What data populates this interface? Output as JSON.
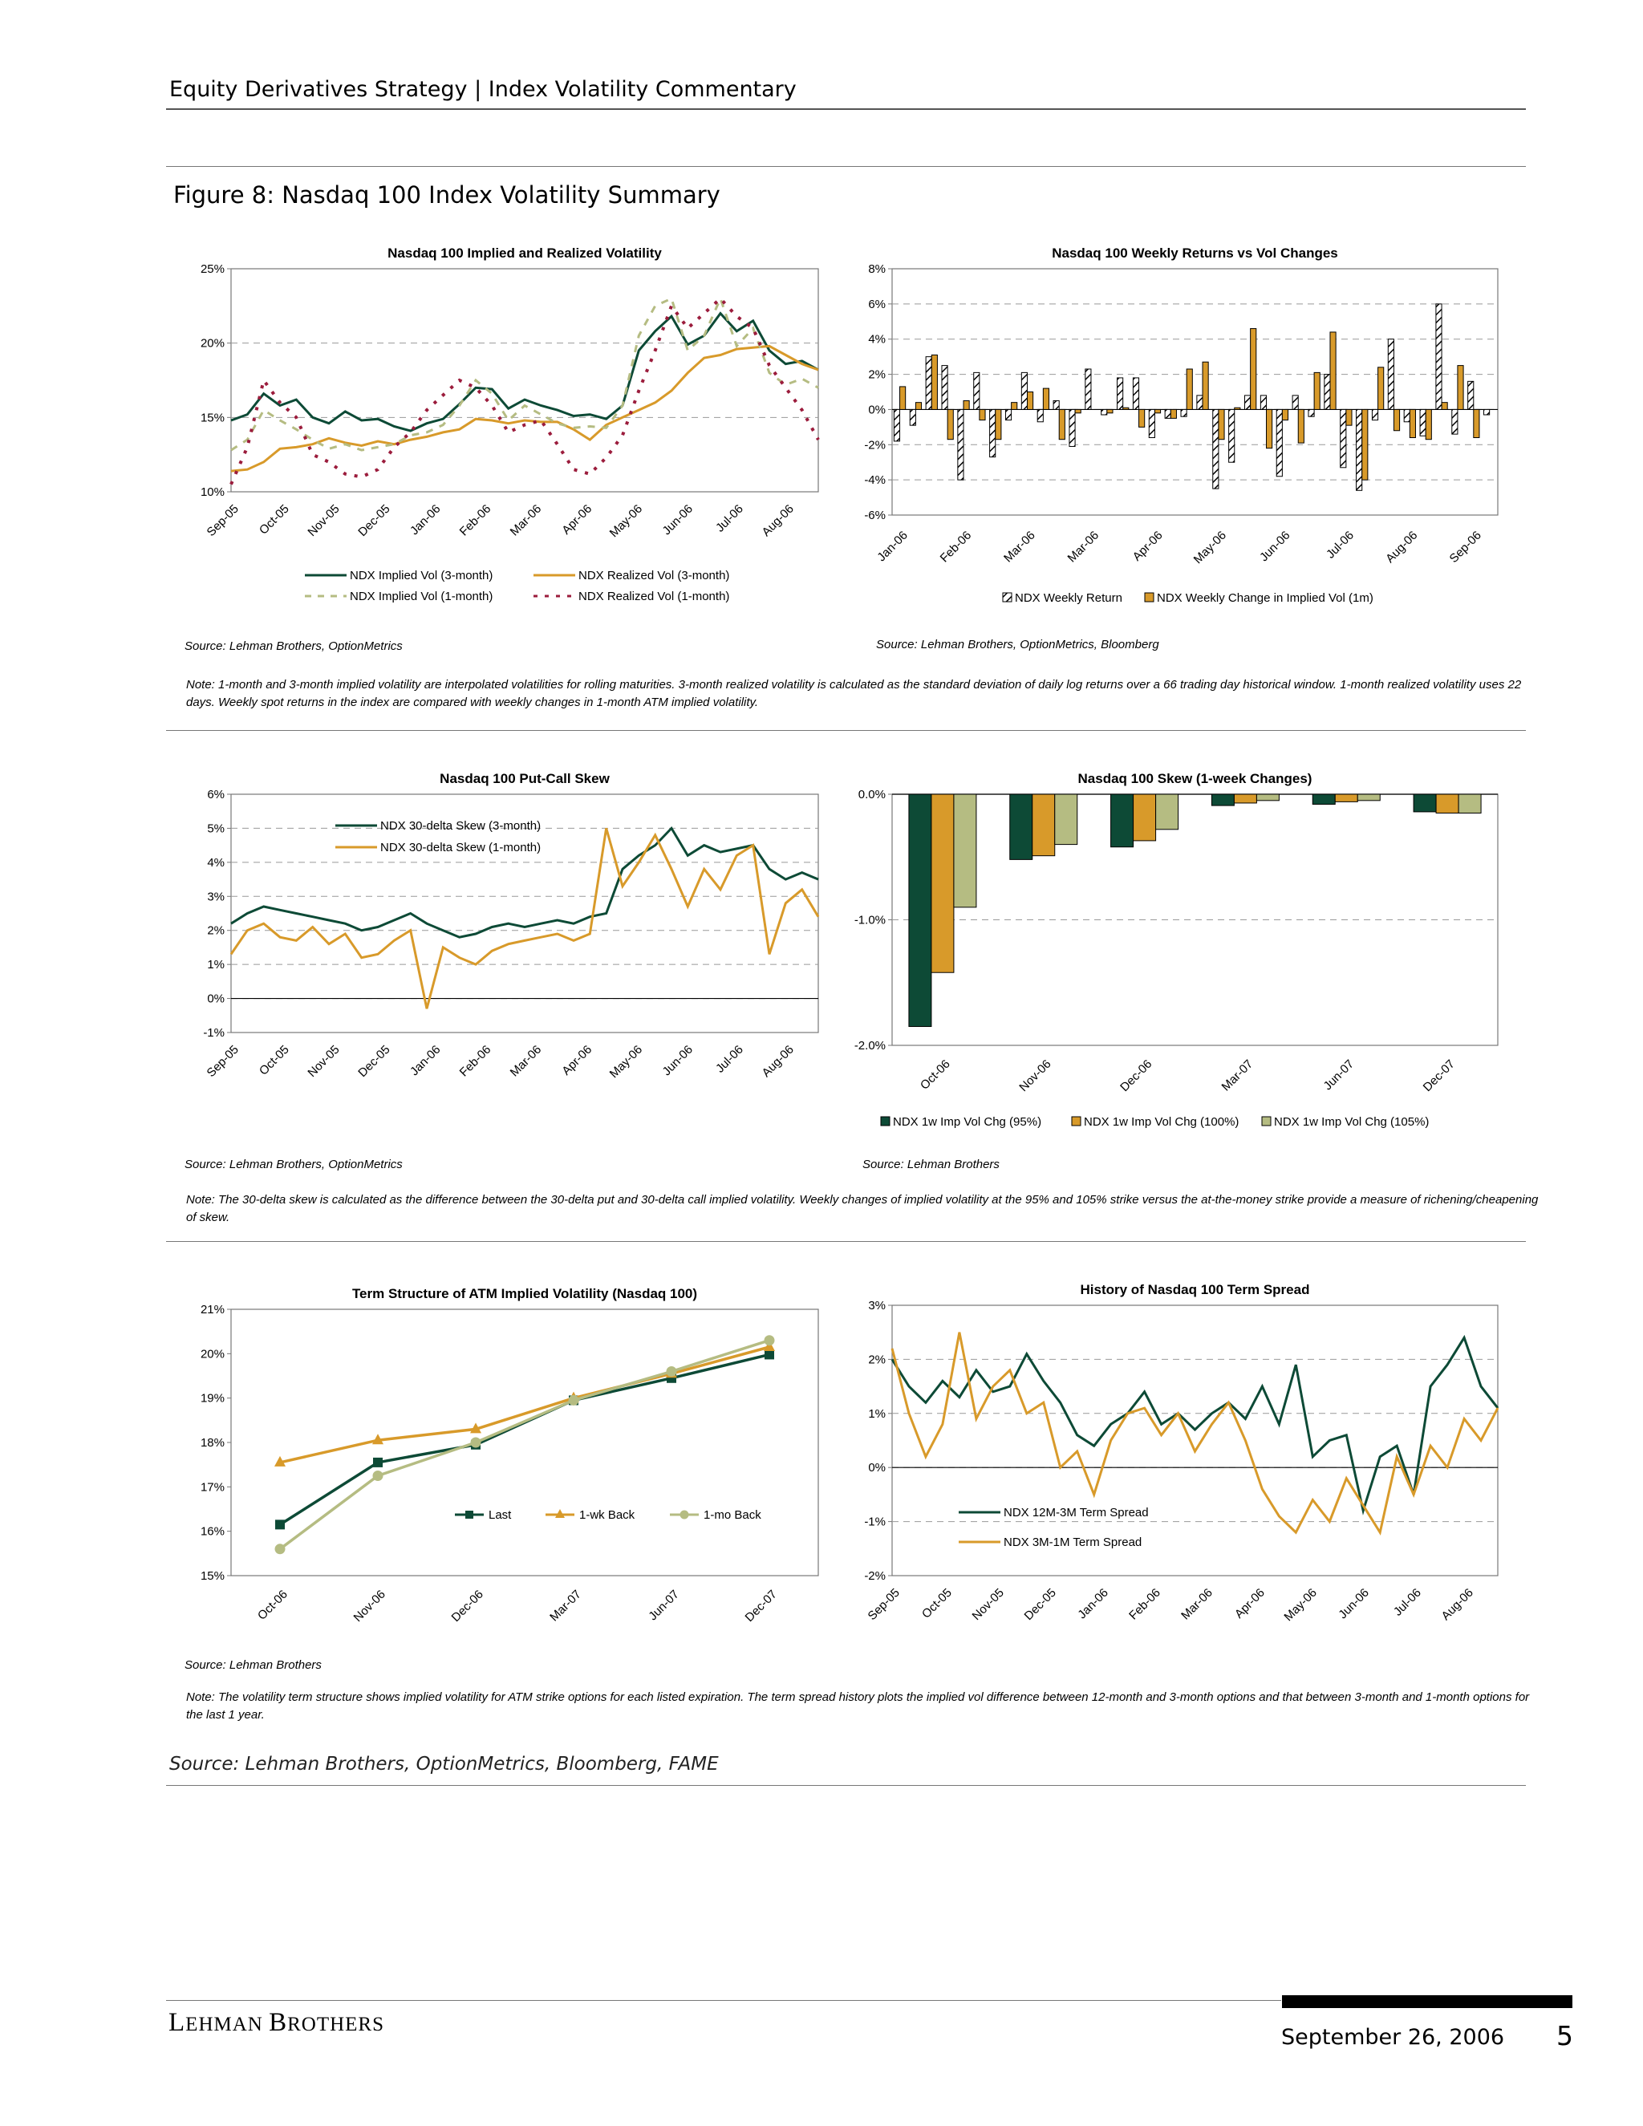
{
  "header": {
    "text": "Equity Derivatives Strategy | Index Volatility Commentary"
  },
  "figure": {
    "title": "Figure 8: Nasdaq 100 Index Volatility Summary"
  },
  "sources": {
    "s1": "Source: Lehman Brothers, OptionMetrics",
    "s2": "Source: Lehman Brothers, OptionMetrics, Bloomberg",
    "s3": "Source: Lehman Brothers, OptionMetrics",
    "s4": "Source: Lehman Brothers",
    "s5": "Source: Lehman Brothers",
    "overall": "Source: Lehman Brothers, OptionMetrics, Bloomberg, FAME"
  },
  "notes": {
    "n1": "Note: 1-month and 3-month implied volatility are interpolated volatilities for rolling maturities. 3-month realized volatility is calculated as the standard deviation of daily log returns over a 66 trading day historical window. 1-month realized volatility uses 22 days. Weekly spot returns in the index are compared with weekly changes in 1-month ATM implied volatility.",
    "n2": "Note: The 30-delta skew is calculated as the difference between the 30-delta put and 30-delta call implied volatility. Weekly changes of implied volatility at the 95% and 105% strike versus the at-the-money strike provide a measure of richening/cheapening of skew.",
    "n3": "Note: The volatility term structure shows implied volatility for ATM strike options for each listed expiration. The term spread history plots the implied vol difference between 12-month and 3-month options and that between 3-month and 1-month options for the last 1 year."
  },
  "footer": {
    "brand_first": "L",
    "brand_rest": "EHMAN ",
    "brand_first2": "B",
    "brand_rest2": "ROTHERS",
    "date": "September 26, 2006",
    "page": "5"
  },
  "colors": {
    "green": "#0d4a36",
    "orange": "#d89a2a",
    "lightgreen": "#b5bc82",
    "maroon": "#9b1c3c"
  },
  "chart_data": [
    {
      "id": "c1",
      "type": "line",
      "title": "Nasdaq 100 Implied and Realized Volatility",
      "x_ticks": [
        "Sep-05",
        "Oct-05",
        "Nov-05",
        "Dec-05",
        "Jan-06",
        "Feb-06",
        "Mar-06",
        "Apr-06",
        "May-06",
        "Jun-06",
        "Jul-06",
        "Aug-06"
      ],
      "y_ticks": [
        "25%",
        "20%",
        "15%",
        "10%"
      ],
      "ylim": [
        10,
        25
      ],
      "legend_placement": "below",
      "grid": true,
      "series": [
        {
          "name": "NDX Implied Vol (3-month)",
          "style": "solid",
          "color": "#0d4a36",
          "values": [
            14.8,
            15.2,
            16.6,
            15.8,
            16.2,
            15.0,
            14.6,
            15.4,
            14.8,
            14.9,
            14.4,
            14.1,
            14.6,
            14.9,
            15.9,
            17.0,
            16.9,
            15.6,
            16.2,
            15.8,
            15.5,
            15.1,
            15.2,
            14.9,
            15.8,
            19.5,
            20.8,
            21.8,
            19.9,
            20.5,
            22.0,
            20.8,
            21.5,
            19.5,
            18.6,
            18.8,
            18.2
          ]
        },
        {
          "name": "NDX Realized Vol (3-month)",
          "style": "solid",
          "color": "#d89a2a",
          "values": [
            11.4,
            11.5,
            12.0,
            12.9,
            13.0,
            13.2,
            13.6,
            13.3,
            13.1,
            13.4,
            13.2,
            13.5,
            13.7,
            14.0,
            14.2,
            14.9,
            14.8,
            14.6,
            14.8,
            14.7,
            14.7,
            14.2,
            13.5,
            14.5,
            15.0,
            15.5,
            16.0,
            16.8,
            18.0,
            19.0,
            19.2,
            19.6,
            19.7,
            19.8,
            19.2,
            18.6,
            18.2
          ]
        },
        {
          "name": "NDX Implied Vol (1-month)",
          "style": "dash",
          "color": "#b5bc82",
          "values": [
            12.8,
            13.5,
            15.5,
            14.8,
            14.2,
            13.5,
            12.9,
            13.2,
            12.8,
            13.0,
            13.2,
            13.8,
            14.0,
            14.5,
            15.8,
            17.5,
            16.6,
            14.8,
            15.8,
            15.2,
            14.6,
            14.3,
            14.4,
            14.3,
            15.8,
            20.5,
            22.5,
            23.0,
            19.5,
            20.5,
            23.0,
            19.8,
            21.0,
            18.0,
            17.2,
            17.6,
            17.0
          ]
        },
        {
          "name": "NDX Realized Vol (1-month)",
          "style": "dot",
          "color": "#9b1c3c",
          "values": [
            10.5,
            13.0,
            17.5,
            16.0,
            15.0,
            12.5,
            12.0,
            11.2,
            11.0,
            11.5,
            13.0,
            14.0,
            15.5,
            16.5,
            17.5,
            17.0,
            15.8,
            14.0,
            14.5,
            14.8,
            13.2,
            11.5,
            11.2,
            12.3,
            13.8,
            16.8,
            19.5,
            22.5,
            21.0,
            22.0,
            23.0,
            21.8,
            21.0,
            18.5,
            17.0,
            15.5,
            13.5
          ]
        }
      ]
    },
    {
      "id": "c2",
      "type": "bar",
      "title": "Nasdaq 100 Weekly Returns vs Vol Changes",
      "x_ticks": [
        "Jan-06",
        "Feb-06",
        "Mar-06",
        "Mar-06",
        "Apr-06",
        "May-06",
        "Jun-06",
        "Jul-06",
        "Aug-06",
        "Sep-06"
      ],
      "y_ticks": [
        "8%",
        "6%",
        "4%",
        "2%",
        "0%",
        "-2%",
        "-4%",
        "-6%"
      ],
      "ylim": [
        -6,
        8
      ],
      "legend_placement": "below",
      "grid": true,
      "series": [
        {
          "name": "NDX Weekly Return",
          "pattern": "hatched",
          "values": [
            -1.8,
            -0.9,
            3.0,
            2.5,
            -4.0,
            2.1,
            -2.7,
            -0.6,
            2.1,
            -0.7,
            0.5,
            -2.1,
            2.3,
            -0.3,
            1.8,
            1.8,
            -1.6,
            -0.5,
            -0.4,
            0.8,
            -4.5,
            -3.0,
            0.8,
            0.8,
            -3.8,
            0.8,
            -0.4,
            2.0,
            -3.3,
            -4.6,
            -0.6,
            4.0,
            -0.7,
            -1.5,
            6.0,
            -1.4,
            1.6,
            -0.3
          ]
        },
        {
          "name": "NDX Weekly Change in Implied Vol (1m)",
          "pattern": "solid",
          "color": "#d89a2a",
          "values": [
            1.3,
            0.4,
            3.1,
            -1.7,
            0.5,
            -0.6,
            -1.7,
            0.4,
            1.0,
            1.2,
            -1.7,
            -0.2,
            0.0,
            -0.2,
            0.1,
            -1.0,
            -0.2,
            -0.5,
            2.3,
            2.7,
            -1.7,
            0.1,
            4.6,
            -2.2,
            -0.6,
            -1.9,
            2.1,
            4.4,
            -0.9,
            -4.0,
            2.4,
            -1.2,
            -1.6,
            -1.7,
            0.4,
            2.5,
            -1.6,
            0.0
          ]
        }
      ]
    },
    {
      "id": "c3",
      "type": "line",
      "title": "Nasdaq 100 Put-Call Skew",
      "x_ticks": [
        "Sep-05",
        "Oct-05",
        "Nov-05",
        "Dec-05",
        "Jan-06",
        "Feb-06",
        "Mar-06",
        "Apr-06",
        "May-06",
        "Jun-06",
        "Jul-06",
        "Aug-06"
      ],
      "y_ticks": [
        "6%",
        "5%",
        "4%",
        "3%",
        "2%",
        "1%",
        "0%",
        "-1%"
      ],
      "ylim": [
        -1,
        6
      ],
      "legend_placement": "top-left",
      "grid": true,
      "series": [
        {
          "name": "NDX 30-delta Skew (3-month)",
          "color": "#0d4a36",
          "values": [
            2.2,
            2.5,
            2.7,
            2.6,
            2.5,
            2.4,
            2.3,
            2.2,
            2.0,
            2.1,
            2.3,
            2.5,
            2.2,
            2.0,
            1.8,
            1.9,
            2.1,
            2.2,
            2.1,
            2.2,
            2.3,
            2.2,
            2.4,
            2.5,
            3.8,
            4.2,
            4.5,
            5.0,
            4.2,
            4.5,
            4.3,
            4.4,
            4.5,
            3.8,
            3.5,
            3.7,
            3.5
          ]
        },
        {
          "name": "NDX 30-delta Skew (1-month)",
          "color": "#d89a2a",
          "values": [
            1.3,
            2.0,
            2.2,
            1.8,
            1.7,
            2.1,
            1.6,
            1.9,
            1.2,
            1.3,
            1.7,
            2.0,
            -0.3,
            1.5,
            1.2,
            1.0,
            1.4,
            1.6,
            1.7,
            1.8,
            1.9,
            1.7,
            1.9,
            5.0,
            3.3,
            4.0,
            4.8,
            3.8,
            2.7,
            3.8,
            3.2,
            4.2,
            4.5,
            1.3,
            2.8,
            3.2,
            2.4
          ]
        }
      ]
    },
    {
      "id": "c4",
      "type": "bar",
      "title": "Nasdaq 100 Skew (1-week Changes)",
      "categories": [
        "Oct-06",
        "Nov-06",
        "Dec-06",
        "Mar-07",
        "Jun-07",
        "Dec-07"
      ],
      "y_ticks": [
        "0.0%",
        "-1.0%",
        "-2.0%"
      ],
      "ylim": [
        -2.0,
        0.0
      ],
      "legend_placement": "below",
      "grid": true,
      "series": [
        {
          "name": "NDX 1w Imp Vol Chg (95%)",
          "color": "#0d4a36",
          "values": [
            -1.85,
            -0.52,
            -0.42,
            -0.09,
            -0.08,
            -0.14
          ]
        },
        {
          "name": "NDX 1w Imp Vol Chg (100%)",
          "color": "#d89a2a",
          "values": [
            -1.42,
            -0.49,
            -0.37,
            -0.07,
            -0.06,
            -0.15
          ]
        },
        {
          "name": "NDX 1w Imp Vol Chg (105%)",
          "color": "#b5bc82",
          "values": [
            -0.9,
            -0.4,
            -0.28,
            -0.05,
            -0.05,
            -0.15
          ]
        }
      ]
    },
    {
      "id": "c5",
      "type": "line",
      "title": "Term Structure of ATM Implied Volatility (Nasdaq 100)",
      "categories": [
        "Oct-06",
        "Nov-06",
        "Dec-06",
        "Mar-07",
        "Jun-07",
        "Dec-07"
      ],
      "y_ticks": [
        "21%",
        "20%",
        "19%",
        "18%",
        "17%",
        "16%",
        "15%"
      ],
      "ylim": [
        15,
        21
      ],
      "legend_placement": "right",
      "grid": false,
      "series": [
        {
          "name": "Last",
          "color": "#0d4a36",
          "marker": "square",
          "values": [
            16.15,
            17.55,
            17.95,
            18.95,
            19.45,
            19.98
          ]
        },
        {
          "name": "1-wk Back",
          "color": "#d89a2a",
          "marker": "triangle",
          "values": [
            17.55,
            18.05,
            18.3,
            19.0,
            19.55,
            20.15
          ]
        },
        {
          "name": "1-mo Back",
          "color": "#b5bc82",
          "marker": "circle",
          "values": [
            15.6,
            17.25,
            18.0,
            18.95,
            19.6,
            20.3
          ]
        }
      ]
    },
    {
      "id": "c6",
      "type": "line",
      "title": "History of Nasdaq 100 Term Spread",
      "x_ticks": [
        "Sep-05",
        "Oct-05",
        "Nov-05",
        "Dec-05",
        "Jan-06",
        "Feb-06",
        "Mar-06",
        "Apr-06",
        "May-06",
        "Jun-06",
        "Jul-06",
        "Aug-06"
      ],
      "y_ticks": [
        "3%",
        "2%",
        "1%",
        "0%",
        "-1%",
        "-2%"
      ],
      "ylim": [
        -2,
        3
      ],
      "legend_placement": "bottom-left",
      "grid": true,
      "series": [
        {
          "name": "NDX 12M-3M Term Spread",
          "color": "#0d4a36",
          "values": [
            2.0,
            1.5,
            1.2,
            1.6,
            1.3,
            1.8,
            1.4,
            1.5,
            2.1,
            1.6,
            1.2,
            0.6,
            0.4,
            0.8,
            1.0,
            1.4,
            0.8,
            1.0,
            0.7,
            1.0,
            1.2,
            0.9,
            1.5,
            0.8,
            1.9,
            0.2,
            0.5,
            0.6,
            -0.8,
            0.2,
            0.4,
            -0.5,
            1.5,
            1.9,
            2.4,
            1.5,
            1.1
          ]
        },
        {
          "name": "NDX 3M-1M Term Spread",
          "color": "#d89a2a",
          "values": [
            2.2,
            1.0,
            0.2,
            0.8,
            2.5,
            0.9,
            1.5,
            1.8,
            1.0,
            1.2,
            0.0,
            0.3,
            -0.5,
            0.5,
            1.0,
            1.1,
            0.6,
            1.0,
            0.3,
            0.8,
            1.2,
            0.5,
            -0.4,
            -0.9,
            -1.2,
            -0.6,
            -1.0,
            -0.2,
            -0.7,
            -1.2,
            0.2,
            -0.5,
            0.4,
            0.0,
            0.9,
            0.5,
            1.1
          ]
        }
      ]
    }
  ]
}
